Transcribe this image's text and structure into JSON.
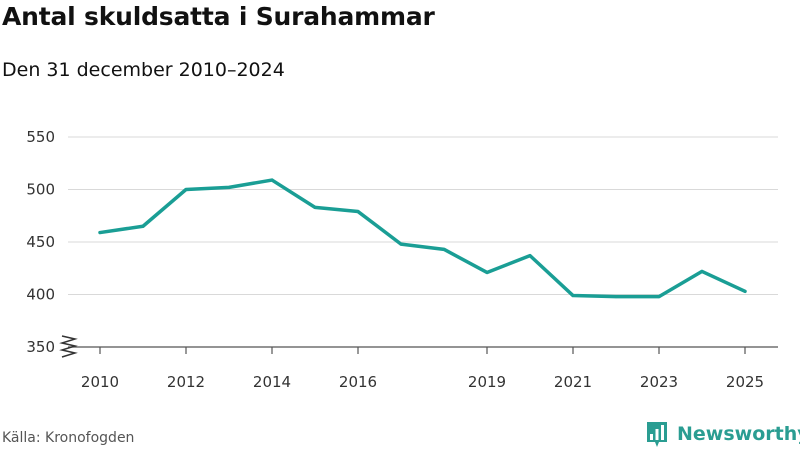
{
  "title": "Antal skuldsatta i Surahammar",
  "subtitle": "Den 31 december 2010–2024",
  "source": "Källa: Kronofogden",
  "brand": {
    "name": "Newsworthy",
    "color": "#2a9d92",
    "icon": "bar-chart-logo-icon"
  },
  "colors": {
    "line": "#1a9e95",
    "grid": "#d9d9d9",
    "axis_text": "#333333"
  },
  "chart_data": {
    "type": "line",
    "title": "Antal skuldsatta i Surahammar",
    "subtitle": "Den 31 december 2010–2024",
    "xlabel": "",
    "ylabel": "",
    "x": [
      2010,
      2011,
      2012,
      2013,
      2014,
      2015,
      2016,
      2017,
      2018,
      2019,
      2020,
      2021,
      2022,
      2023,
      2024,
      2025
    ],
    "series": [
      {
        "name": "Antal skuldsatta",
        "values": [
          459,
          465,
          500,
          502,
          509,
          483,
          479,
          448,
          443,
          421,
          437,
          399,
          398,
          398,
          422,
          403
        ]
      }
    ],
    "x_ticks": [
      "2010",
      "2012",
      "2014",
      "2016",
      "2019",
      "2021",
      "2023",
      "2025"
    ],
    "y_ticks": [
      "350",
      "400",
      "450",
      "500",
      "550"
    ],
    "ylim": [
      350,
      550
    ],
    "xlim": [
      2010,
      2025
    ],
    "axis_break": true,
    "grid": true
  }
}
